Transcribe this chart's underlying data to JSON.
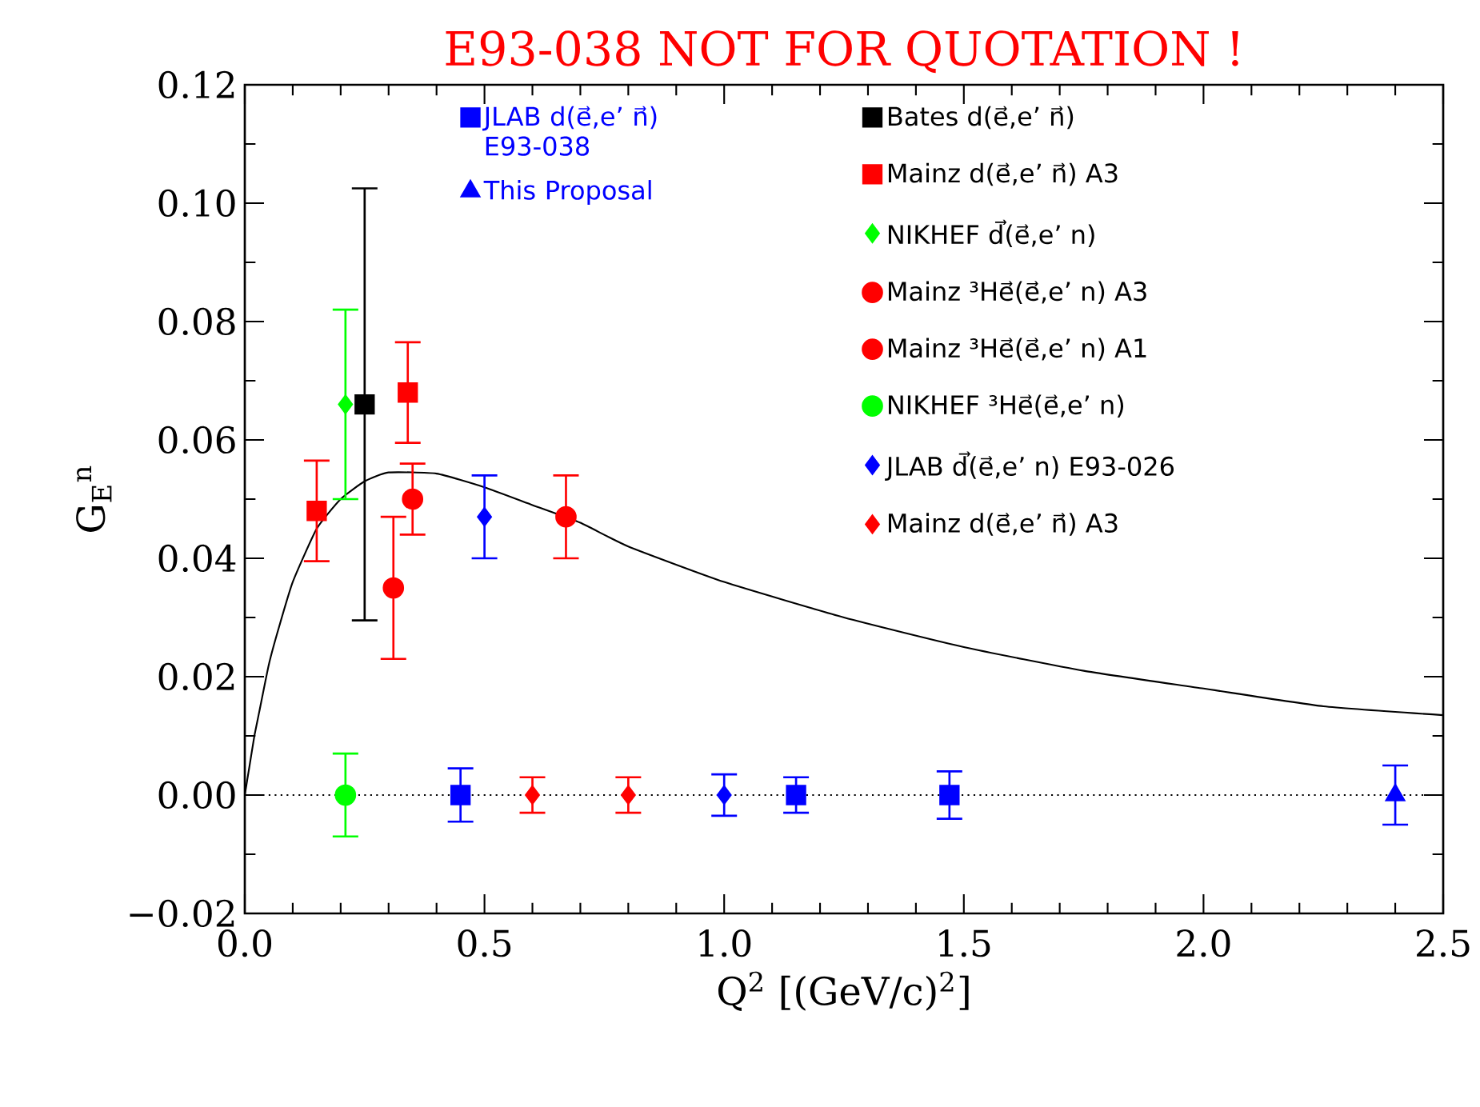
{
  "chart_data": {
    "type": "scatter",
    "title": "E93-038 NOT FOR QUOTATION !",
    "xlabel": "Q$^{2}$ [(GeV/c)$^{2}$]",
    "ylabel": "G$_{E}$$^{n}$",
    "xlim": [
      0,
      2.5
    ],
    "ylim": [
      -0.02,
      0.12
    ],
    "xticks": [
      {
        "value": 0,
        "label": "0.0"
      },
      {
        "value": 0.5,
        "label": "0.5"
      },
      {
        "value": 1,
        "label": "1.0"
      },
      {
        "value": 1.5,
        "label": "1.5"
      },
      {
        "value": 2,
        "label": "2.0"
      },
      {
        "value": 2.5,
        "label": "2.5"
      }
    ],
    "yticks": [
      {
        "value": -0.02,
        "label": "−0.02"
      },
      {
        "value": 0,
        "label": "0.00"
      },
      {
        "value": 0.02,
        "label": "0.02"
      },
      {
        "value": 0.04,
        "label": "0.04"
      },
      {
        "value": 0.06,
        "label": "0.06"
      },
      {
        "value": 0.08,
        "label": "0.08"
      },
      {
        "value": 0.1,
        "label": "0.10"
      },
      {
        "value": 0.12,
        "label": "0.12"
      }
    ],
    "legend": "top",
    "ref_lines": [
      {
        "axis": "y",
        "value": 0,
        "color": "#000000",
        "line_style": "dotted"
      }
    ],
    "series": [
      {
        "type": "line",
        "color": "#000000",
        "x": [
          0,
          0.01,
          0.02,
          0.03,
          0.05,
          0.07,
          0.1,
          0.15,
          0.2,
          0.25,
          0.3,
          0.4,
          0.5,
          0.6,
          0.7,
          0.8,
          1.0,
          1.25,
          1.5,
          1.75,
          2.0,
          2.25,
          2.5
        ],
        "values": [
          0,
          0.005,
          0.01,
          0.014,
          0.022,
          0.028,
          0.036,
          0.045,
          0.05,
          0.053,
          0.0545,
          0.0543,
          0.052,
          0.049,
          0.046,
          0.042,
          0.036,
          0.03,
          0.025,
          0.021,
          0.018,
          0.015,
          0.0135
        ]
      },
      {
        "name": "JLAB d(e⃗,e’ n⃗) E93-038",
        "marker": "square",
        "color": "#0000ff",
        "x": [
          0.45,
          1.15,
          1.47
        ],
        "values": [
          0,
          0,
          0
        ],
        "errors": [
          0.0045,
          0.003,
          0.004
        ]
      },
      {
        "name": "This Proposal",
        "marker": "triangle",
        "color": "#0000ff",
        "x": [
          2.4
        ],
        "values": [
          0
        ],
        "errors": [
          0.005
        ]
      },
      {
        "name": "Bates d(e⃗,e’ n⃗)",
        "marker": "square",
        "color": "#000000",
        "x": [
          0.25
        ],
        "values": [
          0.066
        ],
        "errors": [
          0.0365
        ]
      },
      {
        "name": "Mainz d(e⃗,e’ n⃗) A3",
        "marker": "square",
        "color": "#ff0000",
        "x": [
          0.15,
          0.34
        ],
        "values": [
          0.048,
          0.068
        ],
        "errors": [
          0.0085,
          0.0085
        ]
      },
      {
        "name": "NIKHEF d⃗(e⃗,e’ n)",
        "marker": "diamond",
        "color": "#00ff00",
        "x": [
          0.21
        ],
        "values": [
          0.066
        ],
        "errors": [
          0.016
        ]
      },
      {
        "name": "Mainz ³He⃗(e⃗,e’ n) A3",
        "marker": "circle",
        "color": "#ff0000",
        "x": [
          0.31,
          0.35
        ],
        "values": [
          0.035,
          0.05
        ],
        "errors": [
          0.012,
          0.006
        ]
      },
      {
        "name": "Mainz ³He⃗(e⃗,e’ n) A1",
        "marker": "circle",
        "color": "#ff0000",
        "x": [
          0.67
        ],
        "values": [
          0.047
        ],
        "errors": [
          0.007
        ]
      },
      {
        "name": "NIKHEF ³He⃗(e⃗,e’ n)",
        "marker": "circle",
        "color": "#00ff00",
        "x": [
          0.21
        ],
        "values": [
          0
        ],
        "errors": [
          0.007
        ]
      },
      {
        "name": "JLAB d⃗(e⃗,e’ n) E93-026",
        "marker": "diamond",
        "color": "#0000ff",
        "x": [
          0.5,
          1.0
        ],
        "values": [
          0.047,
          0
        ],
        "errors": [
          0.007,
          0.0035
        ]
      },
      {
        "name": "Mainz d(e⃗,e’ n⃗) A3",
        "marker": "diamond",
        "color": "#ff0000",
        "x": [
          0.6,
          0.8
        ],
        "values": [
          0,
          0
        ],
        "errors": [
          0.003,
          0.003
        ]
      }
    ]
  }
}
